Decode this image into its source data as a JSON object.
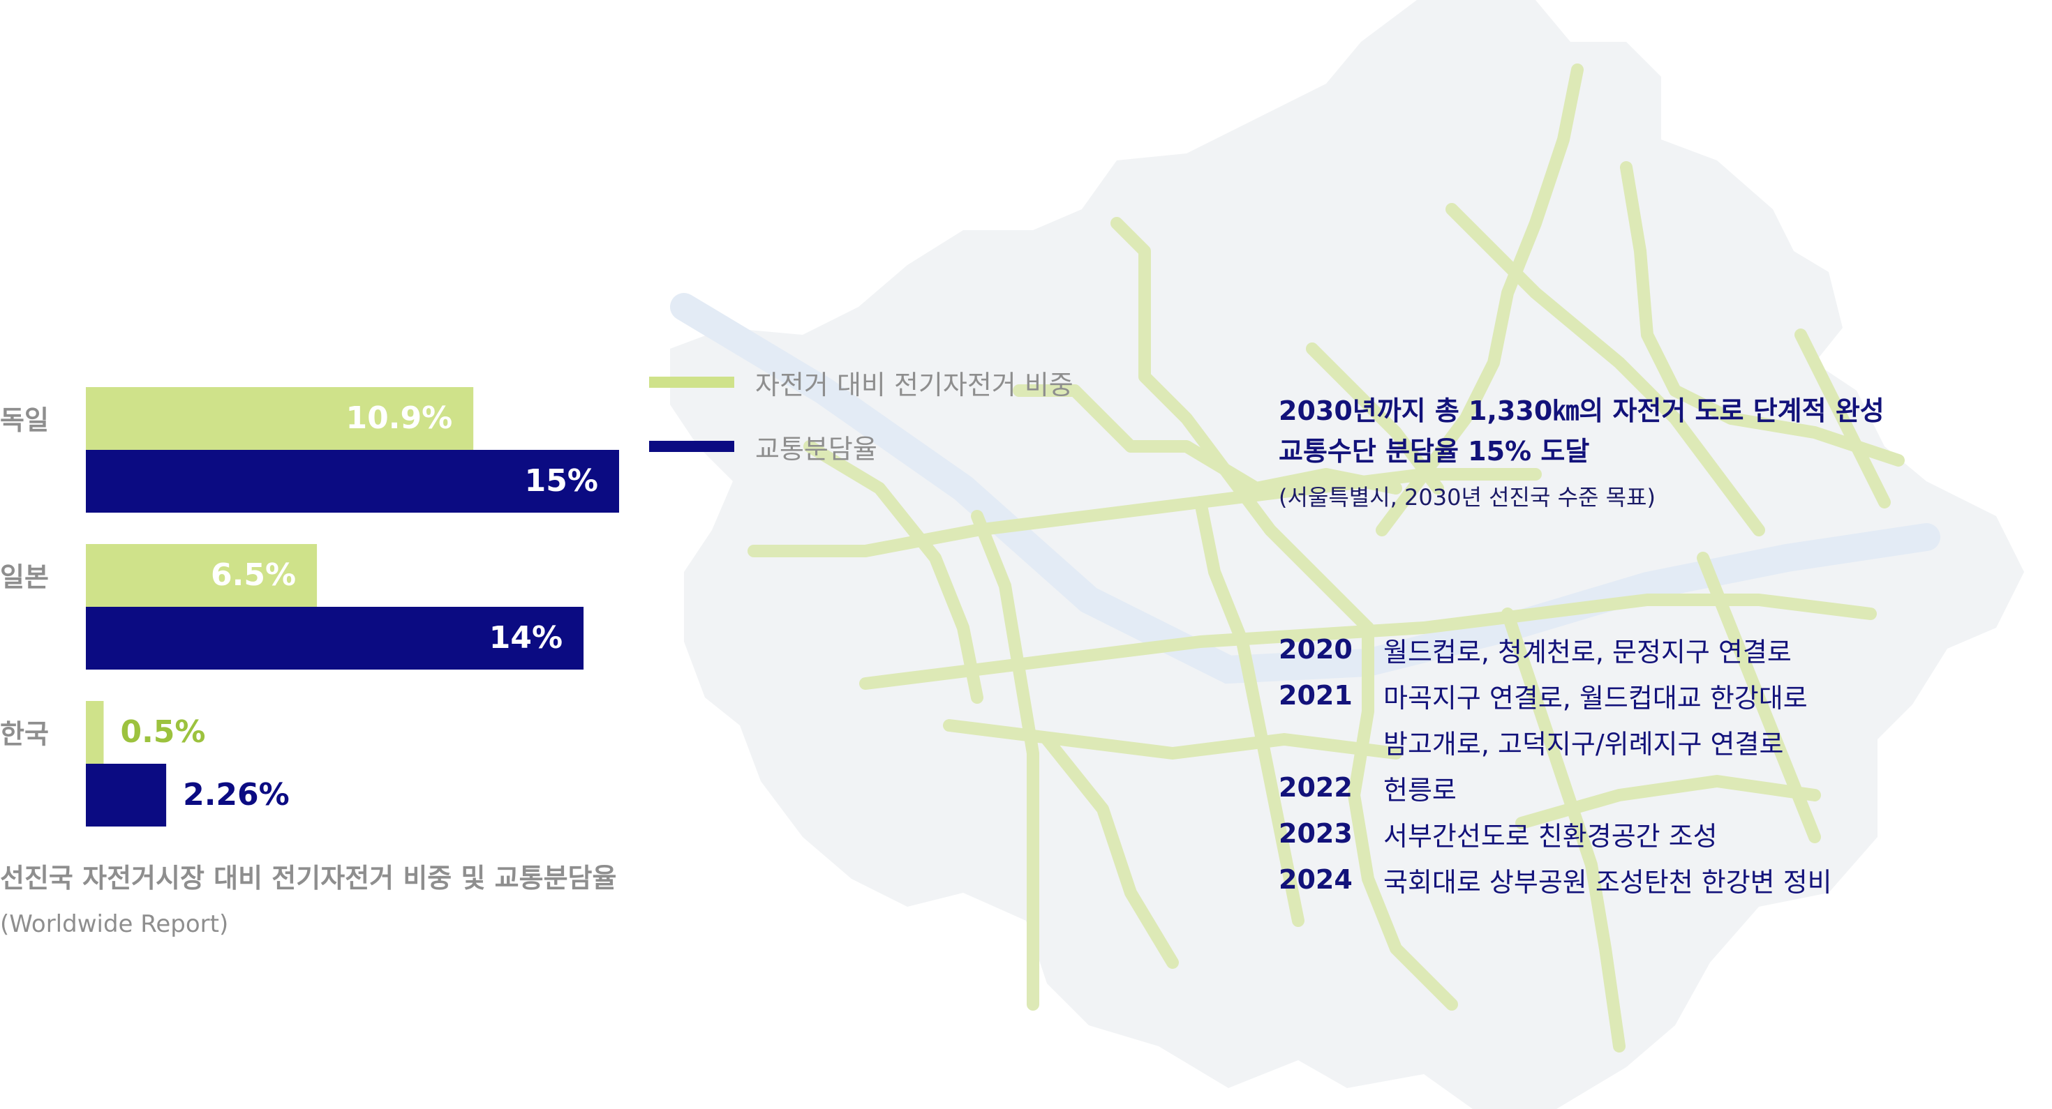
{
  "colors": {
    "ebike_share": "#cfe28a",
    "ebike_label_outside": "#9cc23e",
    "modal_share": "#0b0b82",
    "map_fill": "#f2f4f6",
    "map_route": "#dde9b6",
    "map_river": "#e4ecf6"
  },
  "chart_data": {
    "type": "bar",
    "orientation": "horizontal",
    "categories": [
      "독일",
      "일본",
      "한국"
    ],
    "series": [
      {
        "name": "자전거 대비 전기자전거 비중",
        "values": [
          10.9,
          6.5,
          0.5
        ],
        "labels": [
          "10.9%",
          "6.5%",
          "0.5%"
        ]
      },
      {
        "name": "교통분담율",
        "values": [
          15,
          14,
          2.26
        ],
        "labels": [
          "15%",
          "14%",
          "2.26%"
        ]
      }
    ],
    "xlim": [
      0,
      15
    ],
    "grid": false,
    "legend_position": "right",
    "title": "선진국 자전거시장 대비 전기자전거 비중 및 교통분담율",
    "subtitle": "(Worldwide Report)"
  },
  "goal": {
    "line1": "2030년까지 총 1,330㎞의 자전거 도로 단계적 완성",
    "line2": "교통수단 분담율 15% 도달",
    "note": "(서울특별시, 2030년 선진국 수준 목표)"
  },
  "timeline": [
    {
      "year": "2020",
      "text": "월드컵로, 청계천로, 문정지구 연결로"
    },
    {
      "year": "2021",
      "text": "마곡지구 연결로, 월드컵대교 한강대로"
    },
    {
      "year": "",
      "text": "밤고개로, 고덕지구/위례지구 연결로"
    },
    {
      "year": "2022",
      "text": "헌릉로"
    },
    {
      "year": "2023",
      "text": "서부간선도로 친환경공간 조성"
    },
    {
      "year": "2024",
      "text": "국회대로 상부공원 조성탄천 한강변 정비"
    }
  ]
}
